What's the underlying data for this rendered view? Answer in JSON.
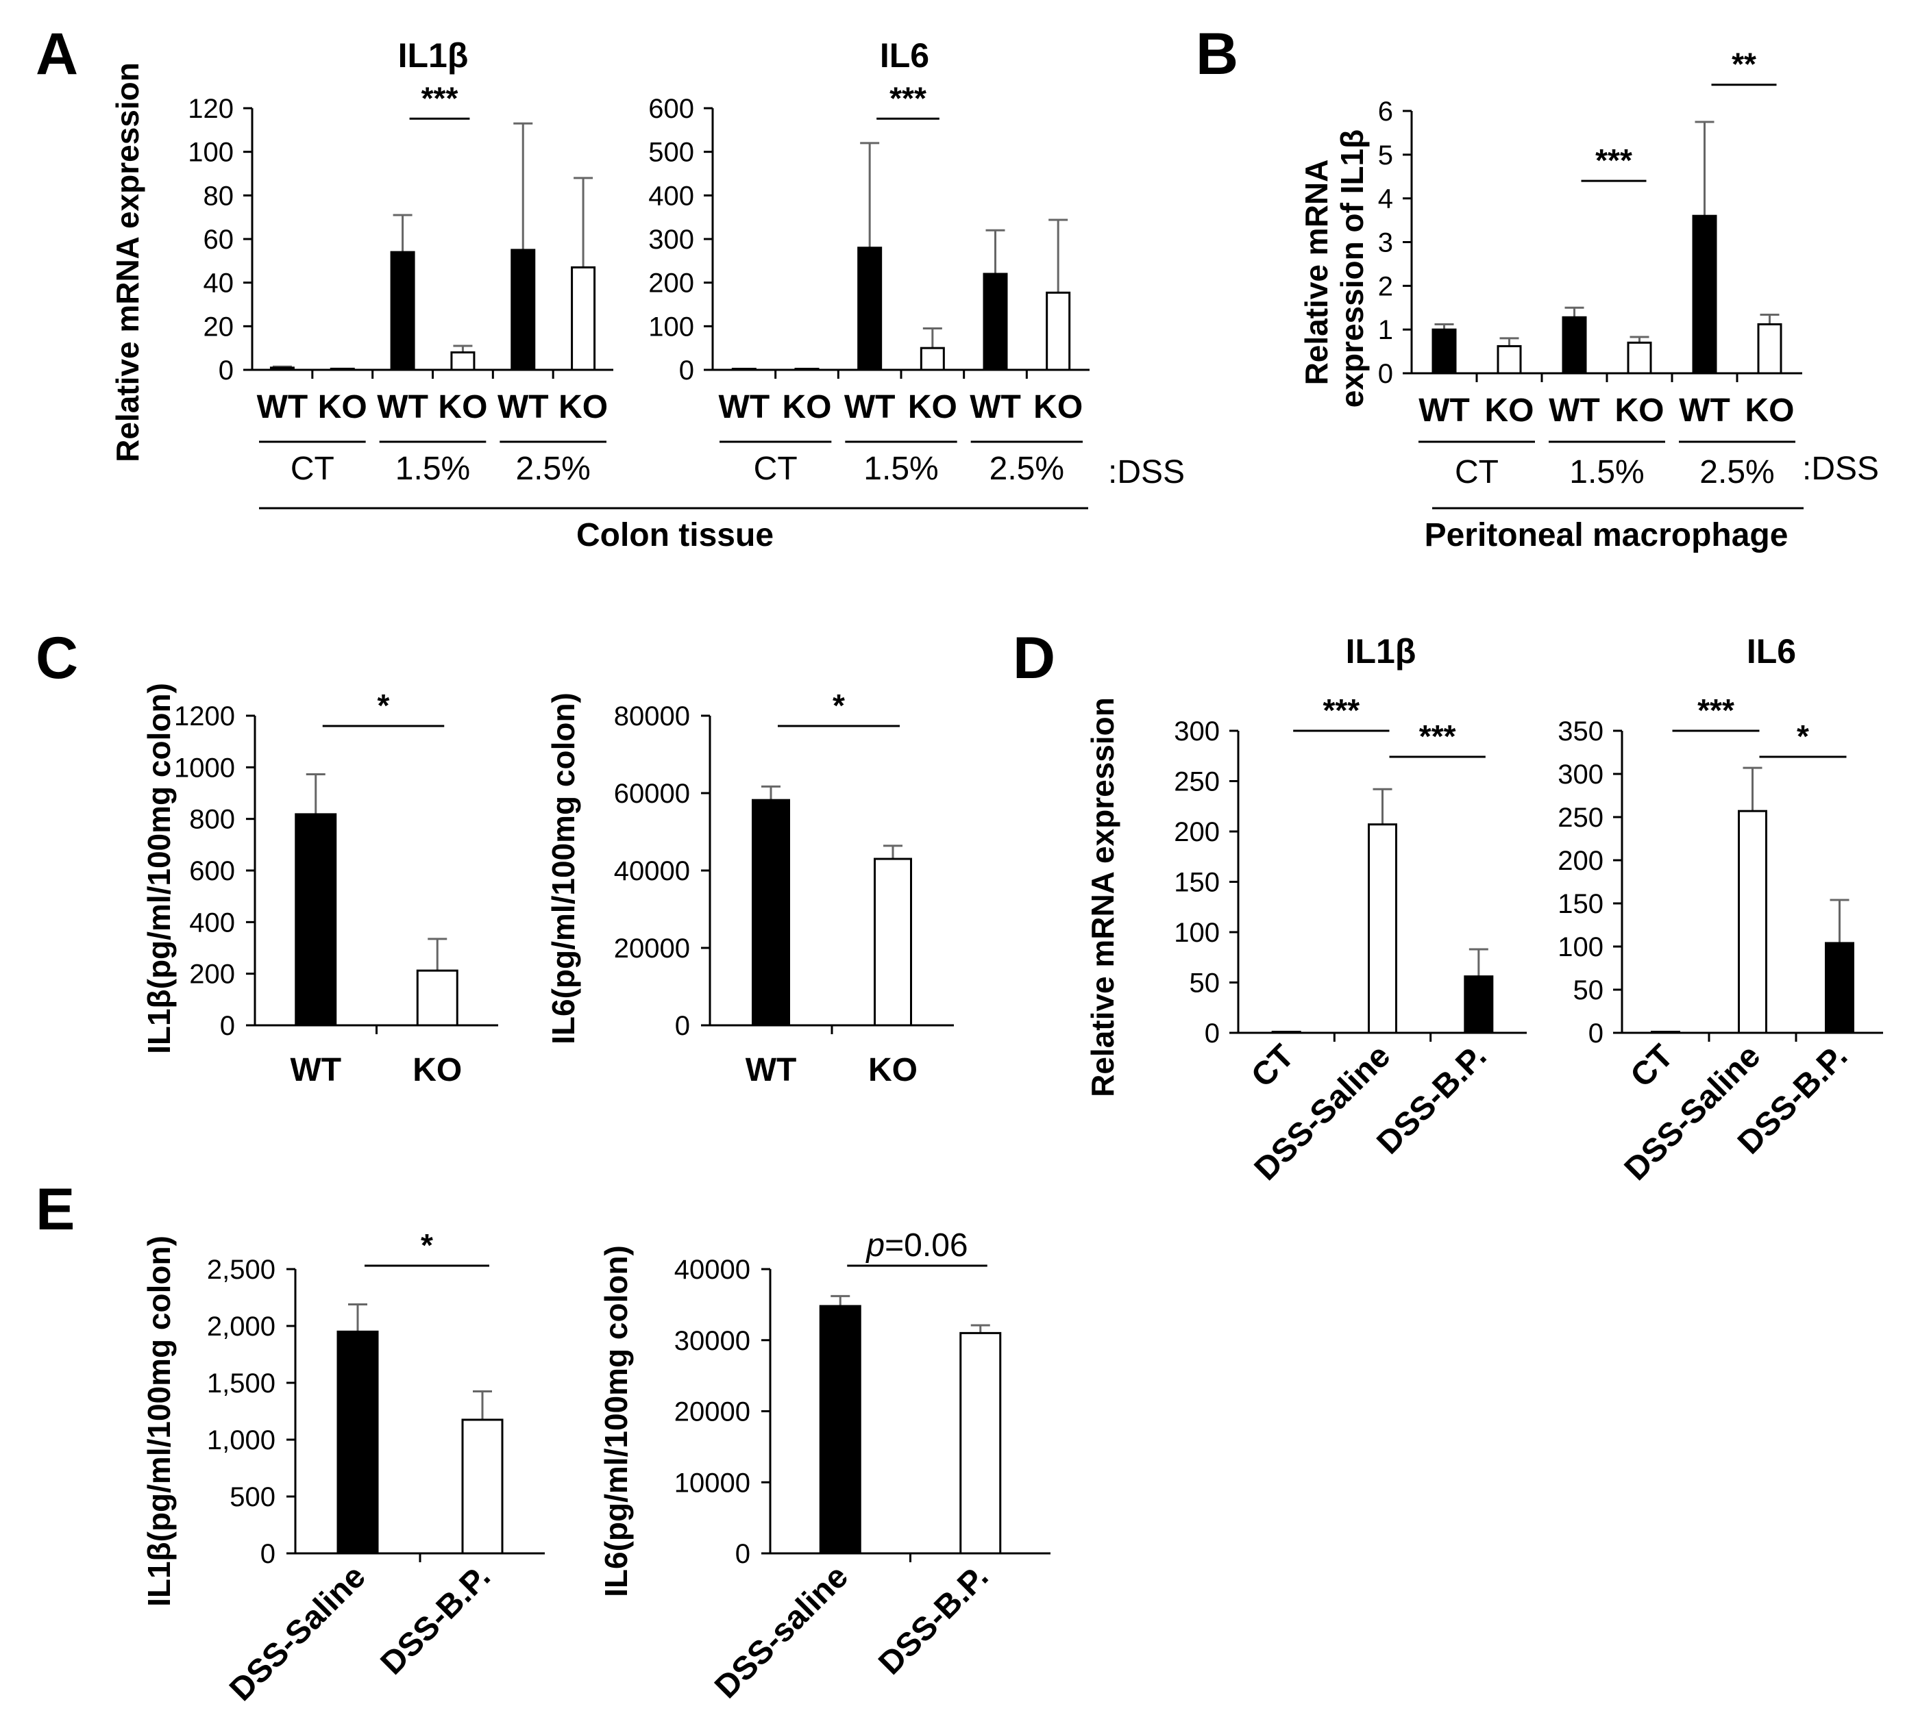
{
  "panel_letters": [
    "A",
    "B",
    "C",
    "D",
    "E"
  ],
  "dss_tag": ":DSS",
  "colors": {
    "wt": "#000000",
    "ko": "#ffffff",
    "stroke": "#000000",
    "errorbar": "#666666"
  },
  "chart_data": [
    {
      "id": "A1",
      "panel": "A",
      "type": "bar",
      "title": "IL1β",
      "ylabel": "Relative mRNA expression",
      "ylim": [
        0,
        120
      ],
      "yticks": [
        "0",
        "20",
        "40",
        "60",
        "80",
        "100",
        "120"
      ],
      "categories": [
        "WT",
        "KO",
        "WT",
        "KO",
        "WT",
        "KO"
      ],
      "groups": [
        "CT",
        "1.5%",
        "2.5%"
      ],
      "values": [
        1,
        0.5,
        54,
        8,
        55,
        47
      ],
      "errors": [
        0.5,
        0.3,
        17,
        3,
        58,
        41
      ],
      "fills": [
        "black",
        "white",
        "black",
        "white",
        "black",
        "white"
      ],
      "significance": [
        {
          "label": "***",
          "from": 2,
          "to": 3
        }
      ]
    },
    {
      "id": "A2",
      "panel": "A",
      "type": "bar",
      "title": "IL6",
      "ylabel": "",
      "ylim": [
        0,
        600
      ],
      "yticks": [
        "0",
        "100",
        "200",
        "300",
        "400",
        "500",
        "600"
      ],
      "categories": [
        "WT",
        "KO",
        "WT",
        "KO",
        "WT",
        "KO"
      ],
      "groups": [
        "CT",
        "1.5%",
        "2.5%"
      ],
      "values": [
        2,
        1,
        280,
        50,
        220,
        177
      ],
      "errors": [
        1,
        0.5,
        240,
        45,
        100,
        167
      ],
      "fills": [
        "black",
        "white",
        "black",
        "white",
        "black",
        "white"
      ],
      "significance": [
        {
          "label": "***",
          "from": 2,
          "to": 3
        }
      ],
      "caption": "Colon tissue"
    },
    {
      "id": "B",
      "panel": "B",
      "type": "bar",
      "title": "",
      "ylabel": "Relative mRNA expression of IL1β",
      "ylim": [
        0,
        6
      ],
      "yticks": [
        "0",
        "1",
        "2",
        "3",
        "4",
        "5",
        "6"
      ],
      "categories": [
        "WT",
        "KO",
        "WT",
        "KO",
        "WT",
        "KO"
      ],
      "groups": [
        "CT",
        "1.5%",
        "2.5%"
      ],
      "values": [
        1.0,
        0.62,
        1.28,
        0.7,
        3.6,
        1.12
      ],
      "errors": [
        0.12,
        0.18,
        0.22,
        0.13,
        2.15,
        0.22
      ],
      "fills": [
        "black",
        "white",
        "black",
        "white",
        "black",
        "white"
      ],
      "significance": [
        {
          "label": "***",
          "from": 2,
          "to": 3
        },
        {
          "label": "**",
          "from": 4,
          "to": 5
        }
      ],
      "caption": "Peritoneal macrophage"
    },
    {
      "id": "C1",
      "panel": "C",
      "type": "bar",
      "title": "",
      "ylabel": "IL1β(pg/ml/100mg colon)",
      "ylim": [
        0,
        1200
      ],
      "yticks": [
        "0",
        "200",
        "400",
        "600",
        "800",
        "1000",
        "1200"
      ],
      "categories": [
        "WT",
        "KO"
      ],
      "values": [
        818,
        212
      ],
      "errors": [
        155,
        123
      ],
      "fills": [
        "black",
        "white"
      ],
      "significance": [
        {
          "label": "*",
          "from": 0,
          "to": 1
        }
      ]
    },
    {
      "id": "C2",
      "panel": "C",
      "type": "bar",
      "title": "",
      "ylabel": "IL6(pg/ml/100mg colon)",
      "ylim": [
        0,
        80000
      ],
      "yticks": [
        "0",
        "20000",
        "40000",
        "60000",
        "80000"
      ],
      "categories": [
        "WT",
        "KO"
      ],
      "values": [
        58200,
        43000
      ],
      "errors": [
        3500,
        3400
      ],
      "fills": [
        "black",
        "white"
      ],
      "significance": [
        {
          "label": "*",
          "from": 0,
          "to": 1
        }
      ]
    },
    {
      "id": "D1",
      "panel": "D",
      "type": "bar",
      "title": "IL1β",
      "ylabel": "Relative mRNA expression",
      "ylim": [
        0,
        300
      ],
      "yticks": [
        "0",
        "50",
        "100",
        "150",
        "200",
        "250",
        "300"
      ],
      "categories": [
        "CT",
        "DSS-Saline",
        "DSS-B.P."
      ],
      "values": [
        1,
        207,
        56
      ],
      "errors": [
        0.5,
        35,
        27
      ],
      "fills": [
        "white",
        "white",
        "black"
      ],
      "significance": [
        {
          "label": "***",
          "from": 0,
          "to": 1
        },
        {
          "label": "***",
          "from": 1,
          "to": 2
        }
      ]
    },
    {
      "id": "D2",
      "panel": "D",
      "type": "bar",
      "title": "IL6",
      "ylabel": "",
      "ylim": [
        0,
        350
      ],
      "yticks": [
        "0",
        "50",
        "100",
        "150",
        "200",
        "250",
        "300",
        "350"
      ],
      "categories": [
        "CT",
        "DSS-Saline",
        "DSS-B.P."
      ],
      "values": [
        1,
        257,
        104
      ],
      "errors": [
        0.5,
        50,
        50
      ],
      "fills": [
        "white",
        "white",
        "black"
      ],
      "significance": [
        {
          "label": "***",
          "from": 0,
          "to": 1
        },
        {
          "label": "*",
          "from": 1,
          "to": 2
        }
      ]
    },
    {
      "id": "E1",
      "panel": "E",
      "type": "bar",
      "title": "",
      "ylabel": "IL1β(pg/ml/100mg colon)",
      "ylim": [
        0,
        2500
      ],
      "yticks": [
        "0",
        "500",
        "1,000",
        "1,500",
        "2,000",
        "2,500"
      ],
      "categories": [
        "DSS-Saline",
        "DSS-B.P."
      ],
      "values": [
        1950,
        1175
      ],
      "errors": [
        240,
        250
      ],
      "fills": [
        "black",
        "white"
      ],
      "significance": [
        {
          "label": "*",
          "from": 0,
          "to": 1
        }
      ]
    },
    {
      "id": "E2",
      "panel": "E",
      "type": "bar",
      "title": "",
      "ylabel": "IL6(pg/ml/100mg colon)",
      "ylim": [
        0,
        40000
      ],
      "yticks": [
        "0",
        "10000",
        "20000",
        "30000",
        "40000"
      ],
      "categories": [
        "DSS-saline",
        "DSS-B.P."
      ],
      "values": [
        34800,
        31000
      ],
      "errors": [
        1400,
        1100
      ],
      "fills": [
        "black",
        "white"
      ],
      "significance": [
        {
          "label": "p=0.06",
          "from": 0,
          "to": 1
        }
      ]
    }
  ]
}
